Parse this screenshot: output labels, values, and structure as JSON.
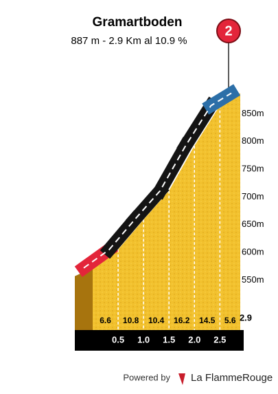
{
  "chart_data": {
    "type": "climb-profile",
    "title": "Gramartboden",
    "subtitle": "887 m - 2.9 Km al 10.9 %",
    "badge": "2",
    "x": [
      0,
      0.5,
      1.0,
      1.5,
      2.0,
      2.5,
      2.9
    ],
    "elevation": [
      572,
      605,
      659,
      711,
      792,
      864.5,
      887
    ],
    "gradients": [
      6.6,
      10.8,
      10.4,
      16.2,
      14.5,
      5.6
    ],
    "road_colors": [
      "#e3253a",
      "#141414",
      "#141414",
      "#141414",
      "#141414",
      "#2c6fa8"
    ],
    "xlim": [
      0,
      2.9
    ],
    "ylim": [
      460,
      900
    ],
    "xticks": [
      0.5,
      {
        "value": 1,
        "label": "1.0"
      },
      1.5,
      {
        "value": 2,
        "label": "2.0"
      },
      2.5,
      2.9
    ],
    "yticks": [
      {
        "value": 550,
        "label": "550m"
      },
      {
        "value": 600,
        "label": "600m"
      },
      {
        "value": 650,
        "label": "650m"
      },
      {
        "value": 700,
        "label": "700m"
      },
      {
        "value": 750,
        "label": "750m"
      },
      {
        "value": 800,
        "label": "800m"
      },
      {
        "value": 850,
        "label": "850m"
      }
    ],
    "fill_color": "#f2c12e"
  },
  "footer": {
    "powered": "Powered by",
    "brand": "La FlammeRouge"
  }
}
